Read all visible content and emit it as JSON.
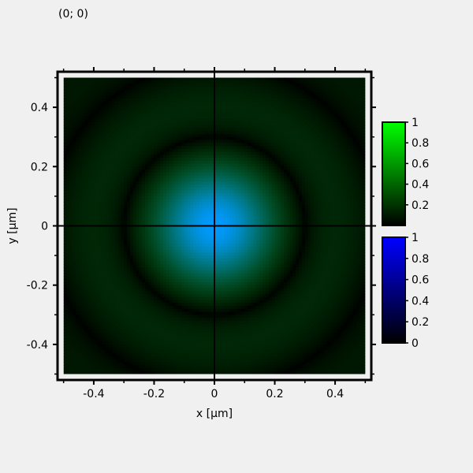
{
  "readout": {
    "coordinates": "(0; 0)"
  },
  "chart_data": {
    "type": "heatmap",
    "title": "",
    "xlabel": "x [µm]",
    "ylabel": "y [µm]",
    "xlim": [
      -0.52,
      0.52
    ],
    "ylim": [
      -0.52,
      0.52
    ],
    "data_extent": {
      "x": [
        -0.5,
        0.5
      ],
      "y": [
        -0.5,
        0.5
      ]
    },
    "x_ticks": [
      -0.4,
      -0.2,
      0,
      0.2,
      0.4
    ],
    "x_tick_labels": [
      "-0.4",
      "-0.2",
      "0",
      "0.2",
      "0.4"
    ],
    "y_ticks": [
      0.4,
      0.2,
      0,
      -0.2,
      -0.4
    ],
    "y_tick_labels": [
      "0.4",
      "0.2",
      "0",
      "-0.2",
      "-0.4"
    ],
    "crosshair": {
      "x": 0,
      "y": 0
    },
    "grid": false,
    "channels": [
      {
        "name": "green",
        "color": "#00ff00",
        "profile": "airy-pattern",
        "peak_value": 0.55
      },
      {
        "name": "blue",
        "color": "#0000ff",
        "profile": "airy-pattern",
        "peak_value": 1.0
      }
    ],
    "pattern": {
      "first_dark_ring_radius": 0.3,
      "resolution": 100
    },
    "colorbars": [
      {
        "name": "green-colorbar",
        "color": "#00ff00",
        "range": [
          0,
          1
        ],
        "tick_values": [
          1,
          0.8,
          0.6,
          0.4,
          0.2
        ],
        "tick_labels": [
          "1",
          "0.8",
          "0.6",
          "0.4",
          "0.2"
        ]
      },
      {
        "name": "blue-colorbar",
        "color": "#0000ff",
        "range": [
          0,
          1
        ],
        "tick_values": [
          1,
          0.8,
          0.6,
          0.4,
          0.2,
          0
        ],
        "tick_labels": [
          "1",
          "0.8",
          "0.6",
          "0.4",
          "0.2",
          "0"
        ]
      }
    ]
  }
}
